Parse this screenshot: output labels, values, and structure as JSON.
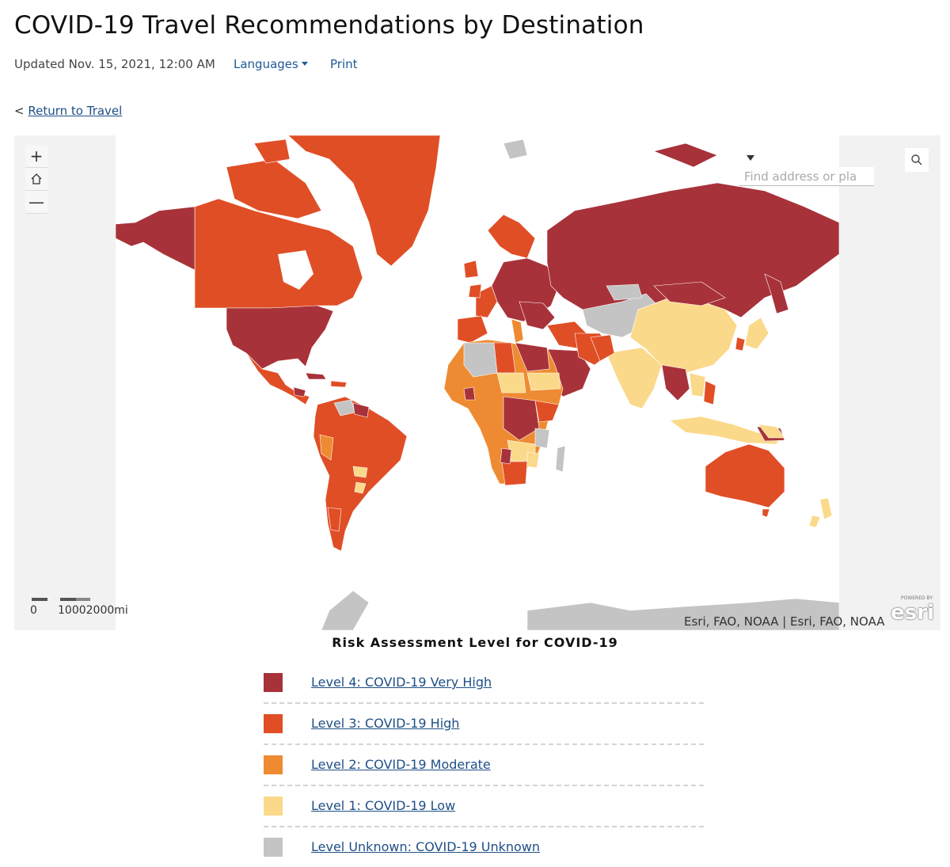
{
  "page": {
    "title": "COVID-19 Travel Recommendations by Destination",
    "updated": "Updated Nov. 15, 2021, 12:00 AM",
    "languages_label": "Languages",
    "print_label": "Print",
    "back_prefix": "<",
    "back_label": "Return to Travel"
  },
  "map": {
    "search_placeholder": "Find address or pla",
    "zoom_in_icon": "plus-icon",
    "home_icon": "home-icon",
    "zoom_out_icon": "minus-icon",
    "search_icon": "search-icon",
    "scale_zero": "0",
    "scale_label": "10002000mi",
    "attribution": "Esri, FAO, NOAA | Esri, FAO, NOAA",
    "logo_text": "esri",
    "logo_small": "POWERED BY",
    "colors": {
      "level4": "#a8323a",
      "level3": "#e04e26",
      "level2": "#ee8b32",
      "level1": "#fbd98a",
      "unknown": "#c4c4c4"
    }
  },
  "legend": {
    "title": "Risk Assessment Level for COVID-19",
    "items": [
      {
        "label": "Level 4: COVID-19 Very High",
        "color": "#a8323a"
      },
      {
        "label": "Level 3: COVID-19 High",
        "color": "#e04e26"
      },
      {
        "label": "Level 2: COVID-19 Moderate",
        "color": "#ee8b32"
      },
      {
        "label": "Level 1: COVID-19 Low",
        "color": "#fbd98a"
      },
      {
        "label": "Level Unknown: COVID-19 Unknown",
        "color": "#c4c4c4"
      }
    ]
  }
}
